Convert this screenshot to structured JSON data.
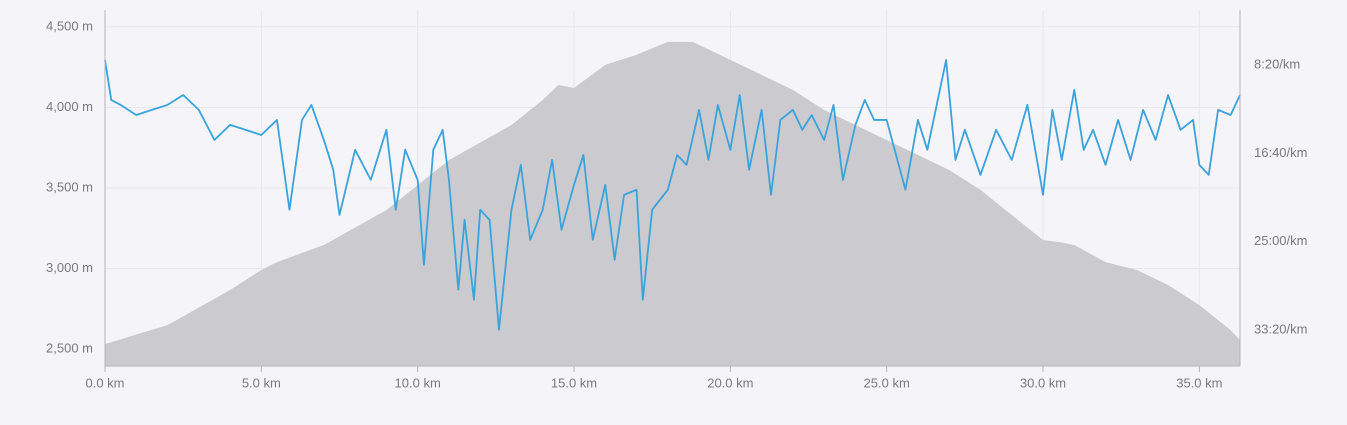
{
  "chart_data": {
    "type": "dual_axis_line",
    "xlim": [
      0,
      36.3
    ],
    "xticks": [
      {
        "value": 0,
        "label": "0.0 km"
      },
      {
        "value": 5,
        "label": "5.0 km"
      },
      {
        "value": 10,
        "label": "10.0 km"
      },
      {
        "value": 15,
        "label": "15.0 km"
      },
      {
        "value": 20,
        "label": "20.0 km"
      },
      {
        "value": 25,
        "label": "25.0 km"
      },
      {
        "value": 30,
        "label": "30.0 km"
      },
      {
        "value": 35,
        "label": "35.0 km"
      }
    ],
    "ylim": [
      2395,
      4605
    ],
    "yticks": [
      {
        "value": 2500,
        "label": "2,500 m"
      },
      {
        "value": 3000,
        "label": "3,000 m"
      },
      {
        "value": 3500,
        "label": "3,500 m"
      },
      {
        "value": 4000,
        "label": "4,000 m"
      },
      {
        "value": 4500,
        "label": "4,500 m"
      }
    ],
    "y2lim": [
      2203,
      189
    ],
    "y2ticks": [
      {
        "value": 500,
        "label": "8:20/km"
      },
      {
        "value": 1000,
        "label": "16:40/km"
      },
      {
        "value": 1500,
        "label": "25:00/km"
      },
      {
        "value": 2000,
        "label": "33:20/km"
      }
    ],
    "grid": true,
    "series": [
      {
        "kind": "area",
        "color": "#cbcace",
        "x": [
          0,
          2,
          4,
          5,
          5.5,
          7,
          9,
          11,
          13,
          14,
          14.5,
          15,
          16,
          17,
          18,
          18.8,
          20,
          21,
          22,
          23,
          24,
          25,
          26,
          27,
          28,
          29,
          30,
          30.5,
          31,
          32,
          33,
          34,
          35,
          36,
          36.3
        ],
        "values": [
          2531,
          2649,
          2867,
          2991,
          3040,
          3146,
          3363,
          3673,
          3891,
          4046,
          4140,
          4121,
          4264,
          4327,
          4407,
          4407,
          4295,
          4202,
          4109,
          3984,
          3891,
          3798,
          3705,
          3612,
          3488,
          3332,
          3177,
          3165,
          3146,
          3040,
          2991,
          2898,
          2773,
          2618,
          2556
        ]
      },
      {
        "kind": "line",
        "axis": "y2",
        "color": "#3aa3dc",
        "x": [
          0,
          0.2,
          0.5,
          1,
          1.5,
          2,
          2.5,
          3,
          3.5,
          4,
          4.5,
          5,
          5.5,
          5.9,
          6.3,
          6.6,
          7,
          7.3,
          7.5,
          8,
          8.5,
          9,
          9.3,
          9.6,
          10,
          10.2,
          10.5,
          10.8,
          11,
          11.3,
          11.5,
          11.8,
          12,
          12.3,
          12.6,
          13,
          13.3,
          13.6,
          14,
          14.3,
          14.6,
          15,
          15.3,
          15.6,
          16,
          16.3,
          16.6,
          17,
          17.2,
          17.5,
          18,
          18.3,
          18.6,
          19,
          19.3,
          19.6,
          20,
          20.3,
          20.6,
          21,
          21.3,
          21.6,
          22,
          22.3,
          22.6,
          23,
          23.3,
          23.6,
          24,
          24.3,
          24.6,
          25,
          25.3,
          25.6,
          26,
          26.3,
          26.6,
          26.9,
          27.2,
          27.5,
          28,
          28.5,
          29,
          29.5,
          30,
          30.3,
          30.6,
          31,
          31.3,
          31.6,
          32,
          32.4,
          32.8,
          33.2,
          33.6,
          34,
          34.4,
          34.8,
          35,
          35.3,
          35.6,
          36,
          36.3
        ],
        "values": [
          472,
          698,
          726,
          783,
          754,
          726,
          670,
          754,
          924,
          839,
          867,
          896,
          811,
          1319,
          811,
          726,
          924,
          1093,
          1348,
          980,
          1150,
          867,
          1319,
          980,
          1150,
          1630,
          980,
          867,
          1150,
          1771,
          1376,
          1828,
          1319,
          1376,
          1997,
          1319,
          1065,
          1489,
          1319,
          1037,
          1432,
          1178,
          1009,
          1489,
          1178,
          1602,
          1235,
          1206,
          1828,
          1319,
          1206,
          1009,
          1065,
          754,
          1037,
          726,
          980,
          670,
          1093,
          754,
          1235,
          811,
          754,
          867,
          783,
          924,
          726,
          1150,
          839,
          698,
          811,
          811,
          1009,
          1206,
          811,
          980,
          726,
          472,
          1037,
          867,
          1122,
          867,
          1037,
          726,
          1235,
          754,
          1037,
          641,
          980,
          867,
          1065,
          811,
          1037,
          754,
          924,
          670,
          867,
          811,
          1065,
          1122,
          754,
          783,
          670
        ]
      }
    ]
  }
}
